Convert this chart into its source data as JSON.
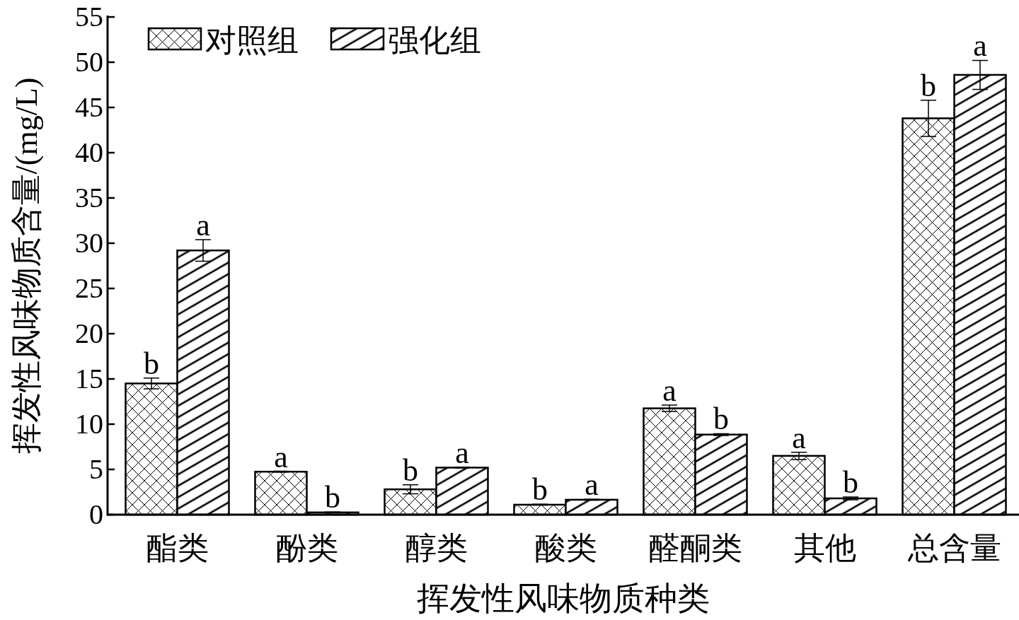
{
  "chart_data": {
    "type": "bar",
    "xlabel": "挥发性风味物质种类",
    "ylabel": "挥发性风味物质含量/(mg/L)",
    "categories": [
      "酯类",
      "酚类",
      "醇类",
      "酸类",
      "醛酮类",
      "其他",
      "总含量"
    ],
    "series": [
      {
        "name": "对照组",
        "color": "#000000",
        "values": [
          14.5,
          4.75,
          2.8,
          1.1,
          11.75,
          6.5,
          43.8
        ],
        "errors": [
          0.6,
          0.05,
          0.5,
          0.05,
          0.35,
          0.4,
          2.0
        ],
        "value_labels": [
          "b",
          "a",
          "b",
          "b",
          "a",
          "a",
          "b"
        ]
      },
      {
        "name": "强化组",
        "color": "#000000",
        "values": [
          29.2,
          0.25,
          5.2,
          1.65,
          8.85,
          1.8,
          48.6
        ],
        "errors": [
          1.2,
          0.05,
          0.05,
          0.05,
          0.1,
          0.15,
          1.6
        ],
        "value_labels": [
          "a",
          "b",
          "a",
          "a",
          "b",
          "b",
          "a"
        ]
      }
    ],
    "ylim": [
      0,
      55
    ],
    "yticks": [
      0,
      5,
      10,
      15,
      20,
      25,
      30,
      35,
      40,
      45,
      50,
      55
    ],
    "grid": false,
    "legend": "top left"
  }
}
